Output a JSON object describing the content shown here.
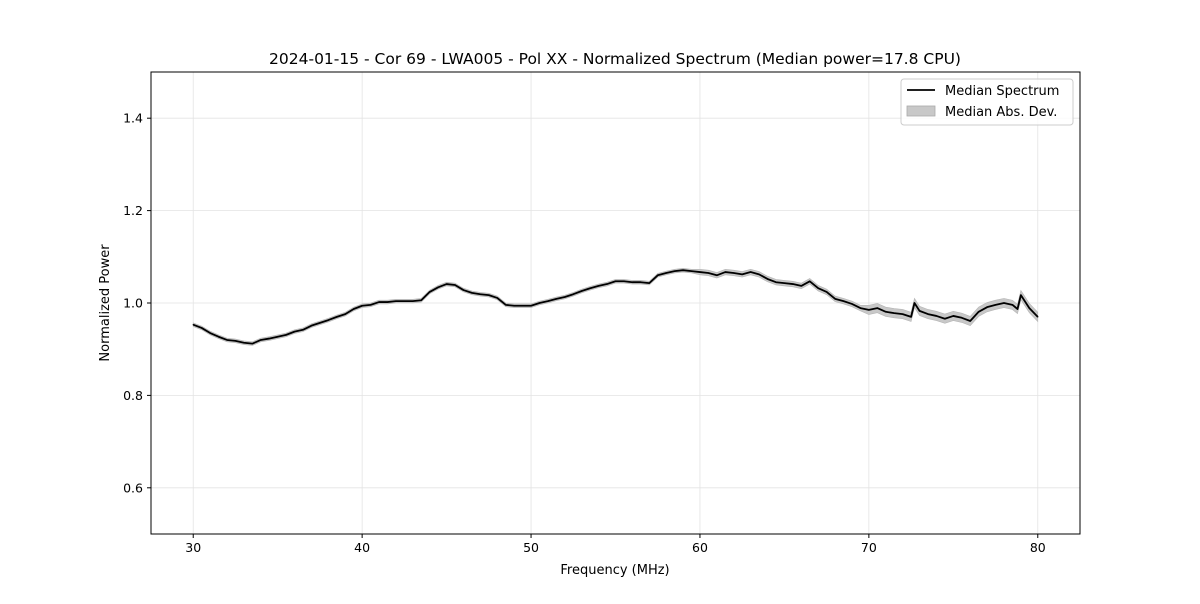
{
  "chart_data": {
    "type": "line",
    "title": "2024-01-15 - Cor 69 - LWA005 - Pol XX - Normalized Spectrum (Median power=17.8 CPU)",
    "xlabel": "Frequency (MHz)",
    "ylabel": "Normalized Power",
    "xlim": [
      27.5,
      82.5
    ],
    "ylim": [
      0.5,
      1.5
    ],
    "xticks": [
      30,
      40,
      50,
      60,
      70,
      80
    ],
    "xtick_labels": [
      "30",
      "40",
      "50",
      "60",
      "70",
      "80"
    ],
    "yticks": [
      0.6,
      0.8,
      1.0,
      1.2,
      1.4
    ],
    "ytick_labels": [
      "0.6",
      "0.8",
      "1.0",
      "1.2",
      "1.4"
    ],
    "grid": true,
    "legend": {
      "placement": "top-right",
      "entries": [
        {
          "label": "Median Spectrum",
          "kind": "line",
          "color": "#000000"
        },
        {
          "label": "Median Abs. Dev.",
          "kind": "band",
          "color": "#c8c8c8"
        }
      ]
    },
    "series": [
      {
        "name": "Median Spectrum",
        "x": [
          30,
          30.5,
          31,
          31.5,
          32,
          32.5,
          33,
          33.5,
          34,
          34.5,
          35,
          35.5,
          36,
          36.5,
          37,
          37.5,
          38,
          38.5,
          39,
          39.5,
          40,
          40.5,
          41,
          41.5,
          42,
          42.5,
          43,
          43.5,
          44,
          44.5,
          45,
          45.5,
          46,
          46.5,
          47,
          47.5,
          48,
          48.5,
          49,
          49.5,
          50,
          50.5,
          51,
          51.5,
          52,
          52.5,
          53,
          53.5,
          54,
          54.5,
          55,
          55.5,
          56,
          56.5,
          57,
          57.5,
          58,
          58.5,
          59,
          59.5,
          60,
          60.5,
          61,
          61.5,
          62,
          62.5,
          63,
          63.5,
          64,
          64.5,
          65,
          65.5,
          66,
          66.5,
          67,
          67.5,
          68,
          68.5,
          69,
          69.5,
          70,
          70.5,
          71,
          71.5,
          72,
          72.5,
          72.7,
          73,
          73.5,
          74,
          74.5,
          75,
          75.5,
          76,
          76.5,
          77,
          77.5,
          78,
          78.5,
          78.8,
          79,
          79.5,
          80
        ],
        "y": [
          0.953,
          0.946,
          0.935,
          0.927,
          0.92,
          0.918,
          0.914,
          0.912,
          0.92,
          0.923,
          0.927,
          0.931,
          0.938,
          0.942,
          0.951,
          0.957,
          0.963,
          0.97,
          0.976,
          0.987,
          0.994,
          0.996,
          1.002,
          1.002,
          1.004,
          1.004,
          1.004,
          1.006,
          1.024,
          1.034,
          1.041,
          1.039,
          1.028,
          1.022,
          1.019,
          1.017,
          1.011,
          0.996,
          0.994,
          0.994,
          0.994,
          1.0,
          1.004,
          1.009,
          1.013,
          1.019,
          1.026,
          1.032,
          1.037,
          1.041,
          1.047,
          1.047,
          1.045,
          1.045,
          1.043,
          1.06,
          1.065,
          1.069,
          1.071,
          1.069,
          1.067,
          1.065,
          1.06,
          1.067,
          1.065,
          1.062,
          1.067,
          1.062,
          1.052,
          1.045,
          1.043,
          1.041,
          1.037,
          1.047,
          1.032,
          1.024,
          1.009,
          1.004,
          0.998,
          0.989,
          0.985,
          0.989,
          0.981,
          0.978,
          0.976,
          0.97,
          1.0,
          0.983,
          0.976,
          0.972,
          0.966,
          0.972,
          0.968,
          0.961,
          0.981,
          0.991,
          0.996,
          1.0,
          0.996,
          0.987,
          1.017,
          0.989,
          0.97
        ],
        "mad": [
          0.004,
          0.004,
          0.004,
          0.004,
          0.004,
          0.004,
          0.004,
          0.004,
          0.004,
          0.004,
          0.004,
          0.004,
          0.004,
          0.004,
          0.004,
          0.004,
          0.004,
          0.004,
          0.004,
          0.004,
          0.004,
          0.004,
          0.004,
          0.004,
          0.004,
          0.004,
          0.004,
          0.004,
          0.004,
          0.004,
          0.004,
          0.004,
          0.004,
          0.004,
          0.004,
          0.004,
          0.004,
          0.004,
          0.004,
          0.004,
          0.004,
          0.004,
          0.004,
          0.004,
          0.004,
          0.004,
          0.004,
          0.004,
          0.004,
          0.004,
          0.004,
          0.004,
          0.004,
          0.004,
          0.004,
          0.004,
          0.004,
          0.004,
          0.004,
          0.004,
          0.006,
          0.006,
          0.006,
          0.006,
          0.006,
          0.006,
          0.006,
          0.006,
          0.006,
          0.006,
          0.006,
          0.006,
          0.006,
          0.006,
          0.006,
          0.006,
          0.006,
          0.006,
          0.006,
          0.006,
          0.01,
          0.01,
          0.01,
          0.01,
          0.01,
          0.01,
          0.01,
          0.01,
          0.01,
          0.01,
          0.01,
          0.01,
          0.01,
          0.01,
          0.01,
          0.01,
          0.01,
          0.01,
          0.01,
          0.01,
          0.01,
          0.01,
          0.01
        ]
      }
    ]
  }
}
